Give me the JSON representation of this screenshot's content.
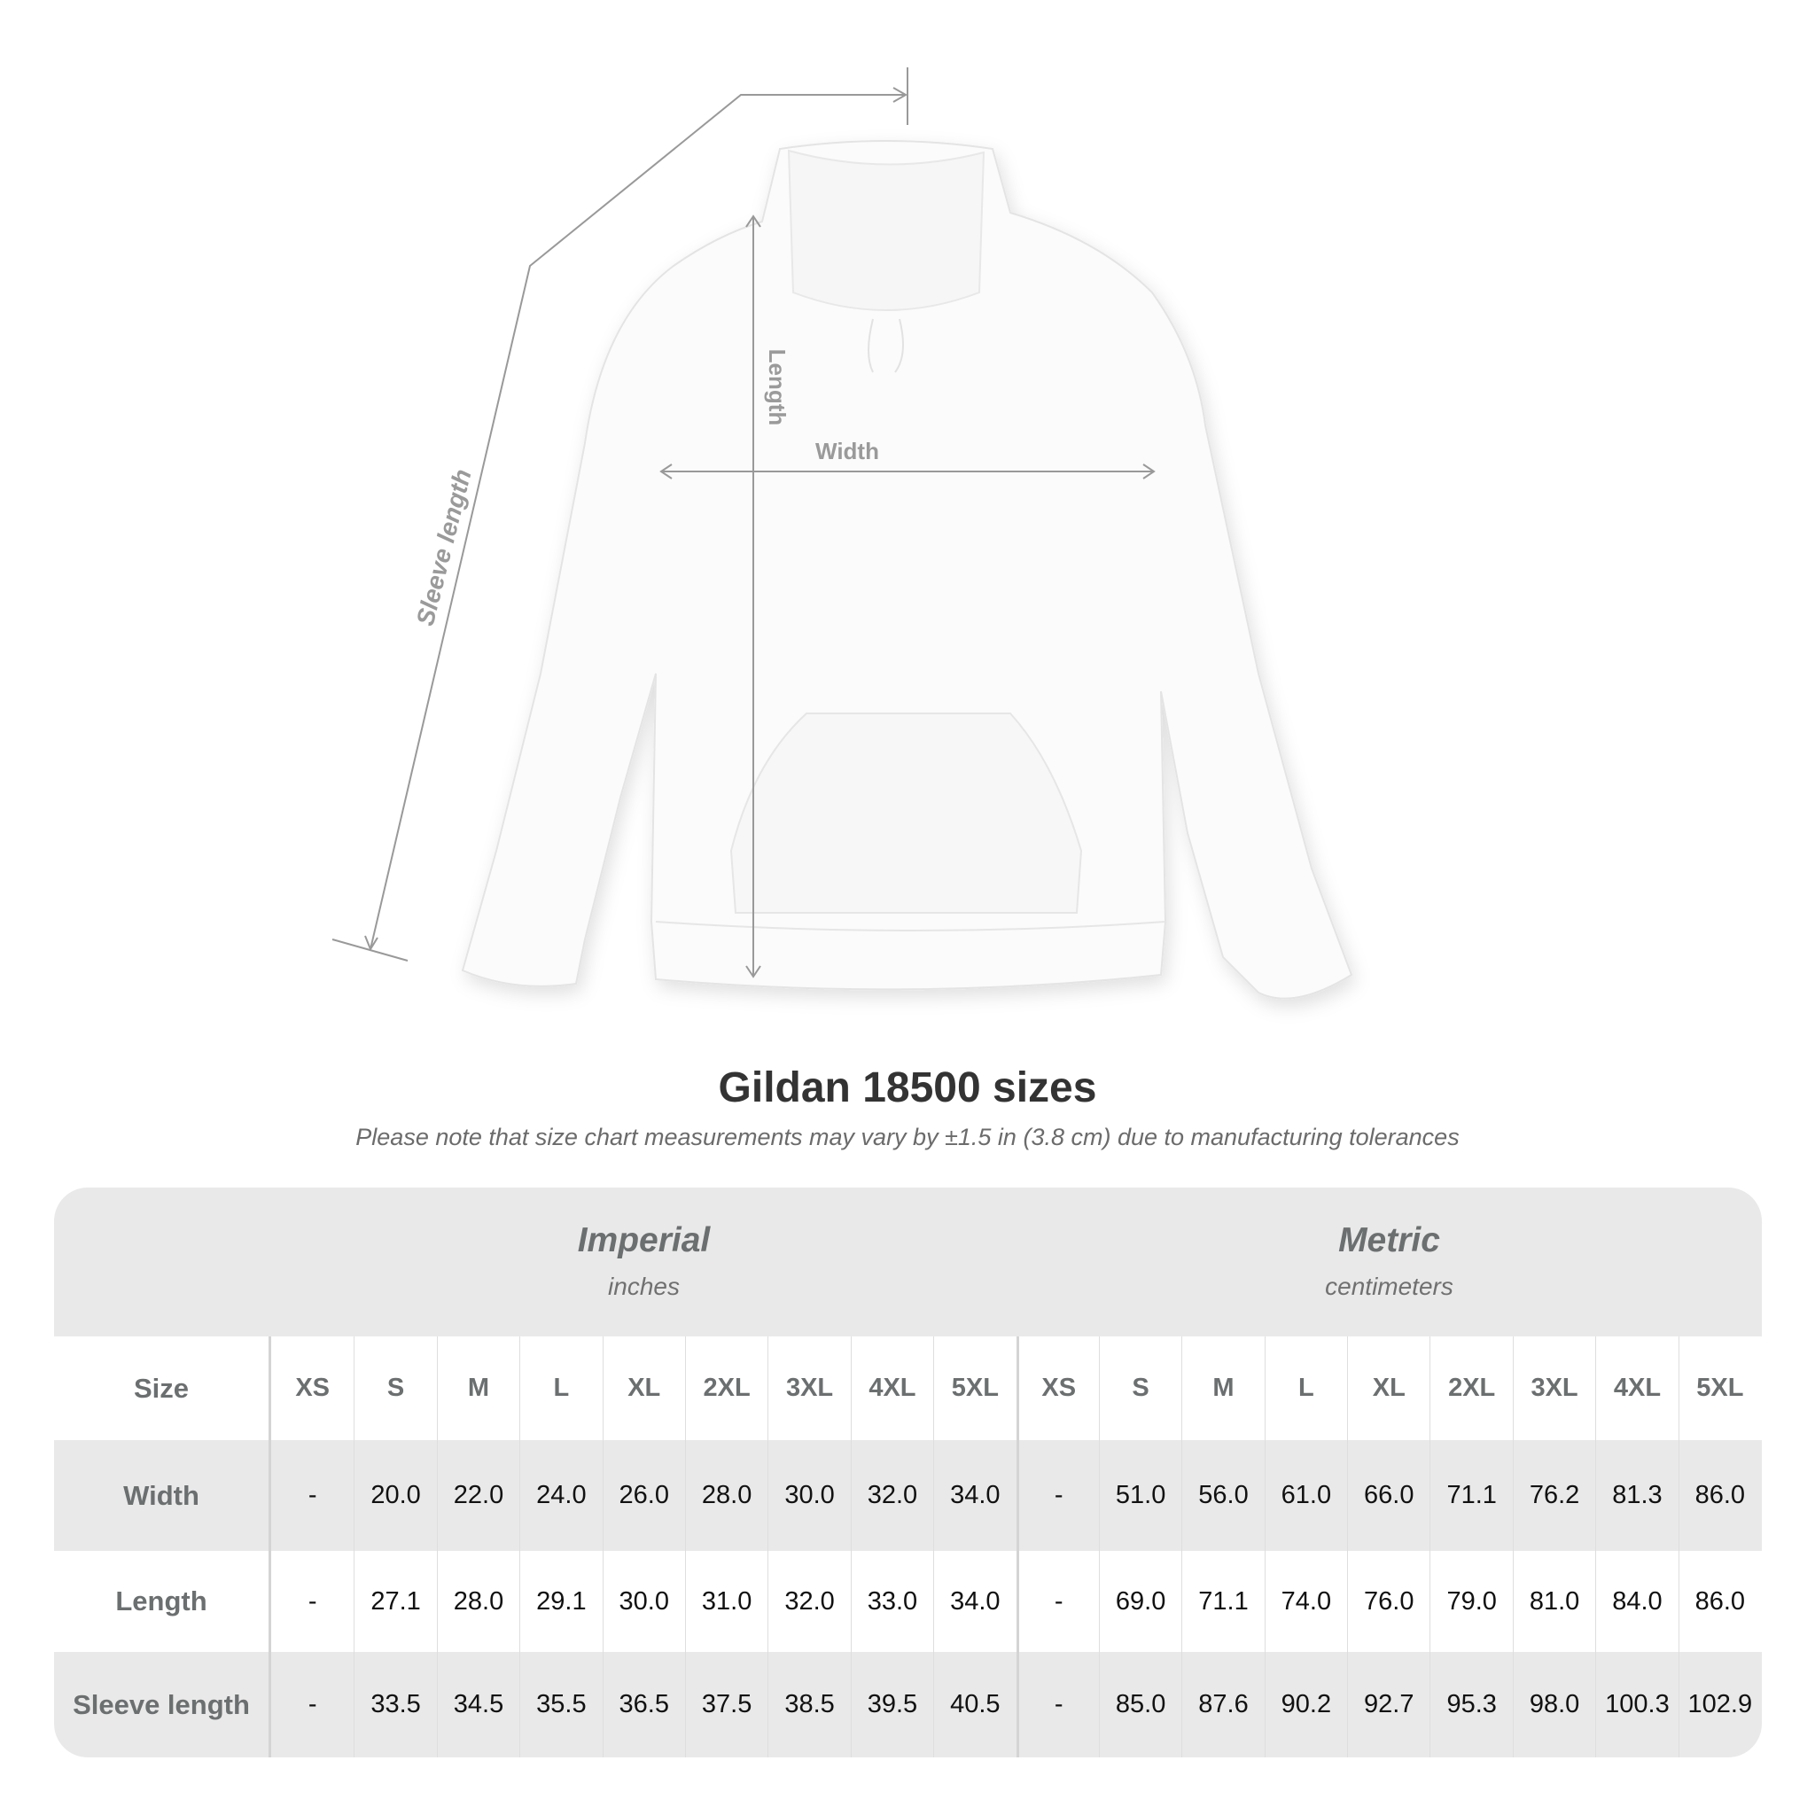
{
  "illustration": {
    "labels": {
      "length": "Length",
      "width": "Width",
      "sleeve": "Sleeve length"
    }
  },
  "title": "Gildan 18500 sizes",
  "subtitle": "Please note that size chart measurements may vary by ±1.5 in (3.8 cm) due to manufacturing tolerances",
  "table": {
    "imperial": {
      "title": "Imperial",
      "unit": "inches"
    },
    "metric": {
      "title": "Metric",
      "unit": "centimeters"
    },
    "size_label": "Size",
    "sizes": [
      "XS",
      "S",
      "M",
      "L",
      "XL",
      "2XL",
      "3XL",
      "4XL",
      "5XL"
    ],
    "rows": [
      {
        "label": "Width",
        "imperial": [
          "-",
          "20.0",
          "22.0",
          "24.0",
          "26.0",
          "28.0",
          "30.0",
          "32.0",
          "34.0"
        ],
        "metric": [
          "-",
          "51.0",
          "56.0",
          "61.0",
          "66.0",
          "71.1",
          "76.2",
          "81.3",
          "86.0"
        ]
      },
      {
        "label": "Length",
        "imperial": [
          "-",
          "27.1",
          "28.0",
          "29.1",
          "30.0",
          "31.0",
          "32.0",
          "33.0",
          "34.0"
        ],
        "metric": [
          "-",
          "69.0",
          "71.1",
          "74.0",
          "76.0",
          "79.0",
          "81.0",
          "84.0",
          "86.0"
        ]
      },
      {
        "label": "Sleeve length",
        "imperial": [
          "-",
          "33.5",
          "34.5",
          "35.5",
          "36.5",
          "37.5",
          "38.5",
          "39.5",
          "40.5"
        ],
        "metric": [
          "-",
          "85.0",
          "87.6",
          "90.2",
          "92.7",
          "95.3",
          "98.0",
          "100.3",
          "102.9"
        ]
      }
    ]
  }
}
